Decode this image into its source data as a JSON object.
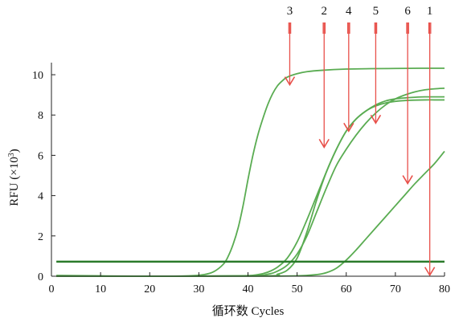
{
  "chart_data": {
    "type": "line",
    "title": "",
    "xlabel": "循环数 Cycles",
    "ylabel_main": "RFU (×10",
    "ylabel_sup": "3",
    "ylabel_close": ")",
    "xlim": [
      0,
      80
    ],
    "ylim": [
      0,
      10.6
    ],
    "xticks": [
      0,
      10,
      20,
      30,
      40,
      50,
      60,
      70,
      80
    ],
    "yticks": [
      0,
      2,
      4,
      6,
      8,
      10
    ],
    "grid": false,
    "colors": {
      "curve": "#5aac52",
      "baseline": "#2a7a2a",
      "arrow": "#e8504a",
      "axis": "#222222"
    },
    "baseline_y": 0.72,
    "series": [
      {
        "id": "3",
        "x": [
          1,
          20,
          28,
          31,
          33,
          35,
          36,
          37,
          38,
          39,
          40,
          41,
          42,
          43,
          44,
          45,
          46,
          47,
          48,
          50,
          52,
          55,
          60,
          65,
          70,
          75,
          80
        ],
        "y": [
          0.04,
          0.0,
          0.02,
          0.08,
          0.22,
          0.6,
          1.0,
          1.6,
          2.4,
          3.5,
          4.8,
          6.0,
          7.0,
          7.8,
          8.5,
          9.05,
          9.45,
          9.7,
          9.88,
          10.05,
          10.15,
          10.22,
          10.28,
          10.3,
          10.31,
          10.32,
          10.32
        ]
      },
      {
        "id": "2",
        "x": [
          1,
          20,
          38,
          42,
          44,
          46,
          48,
          50,
          52,
          54,
          56,
          58,
          60,
          62,
          64,
          66,
          68,
          70,
          72,
          74,
          76,
          78,
          80
        ],
        "y": [
          0.0,
          0.0,
          0.02,
          0.08,
          0.2,
          0.45,
          0.9,
          1.7,
          2.8,
          4.0,
          5.2,
          6.3,
          7.2,
          7.8,
          8.2,
          8.45,
          8.6,
          8.68,
          8.72,
          8.74,
          8.75,
          8.75,
          8.75
        ]
      },
      {
        "id": "4",
        "x": [
          1,
          20,
          40,
          44,
          46,
          48,
          50,
          52,
          54,
          56,
          58,
          60,
          62,
          64,
          66,
          68,
          70,
          72,
          74,
          76,
          78,
          80
        ],
        "y": [
          0.0,
          0.0,
          0.02,
          0.1,
          0.25,
          0.55,
          1.1,
          2.0,
          3.2,
          4.4,
          5.5,
          6.3,
          7.0,
          7.6,
          8.1,
          8.5,
          8.8,
          9.0,
          9.15,
          9.25,
          9.3,
          9.33
        ]
      },
      {
        "id": "5",
        "x": [
          1,
          20,
          44,
          46,
          48,
          50,
          52,
          54,
          56,
          58,
          60,
          62,
          64,
          66,
          68,
          70,
          72,
          74,
          76,
          78,
          80
        ],
        "y": [
          0.0,
          0.0,
          0.02,
          0.1,
          0.3,
          0.9,
          2.2,
          3.8,
          5.2,
          6.3,
          7.2,
          7.8,
          8.2,
          8.5,
          8.7,
          8.8,
          8.85,
          8.88,
          8.9,
          8.9,
          8.9
        ]
      },
      {
        "id": "6",
        "x": [
          1,
          20,
          40,
          50,
          54,
          56,
          58,
          60,
          62,
          64,
          66,
          68,
          70,
          72,
          74,
          76,
          78,
          80
        ],
        "y": [
          0.0,
          0.0,
          0.0,
          0.02,
          0.08,
          0.18,
          0.4,
          0.8,
          1.3,
          1.85,
          2.4,
          2.95,
          3.5,
          4.05,
          4.6,
          5.1,
          5.6,
          6.2
        ]
      }
    ],
    "arrows": [
      {
        "label": "3",
        "x": 48.5,
        "y_tip": 9.5
      },
      {
        "label": "2",
        "x": 55.5,
        "y_tip": 6.4
      },
      {
        "label": "4",
        "x": 60.5,
        "y_tip": 7.2
      },
      {
        "label": "5",
        "x": 66.0,
        "y_tip": 7.6
      },
      {
        "label": "6",
        "x": 72.5,
        "y_tip": 4.6
      },
      {
        "label": "1",
        "x": 77.0,
        "y_tip": 0.05
      }
    ]
  }
}
